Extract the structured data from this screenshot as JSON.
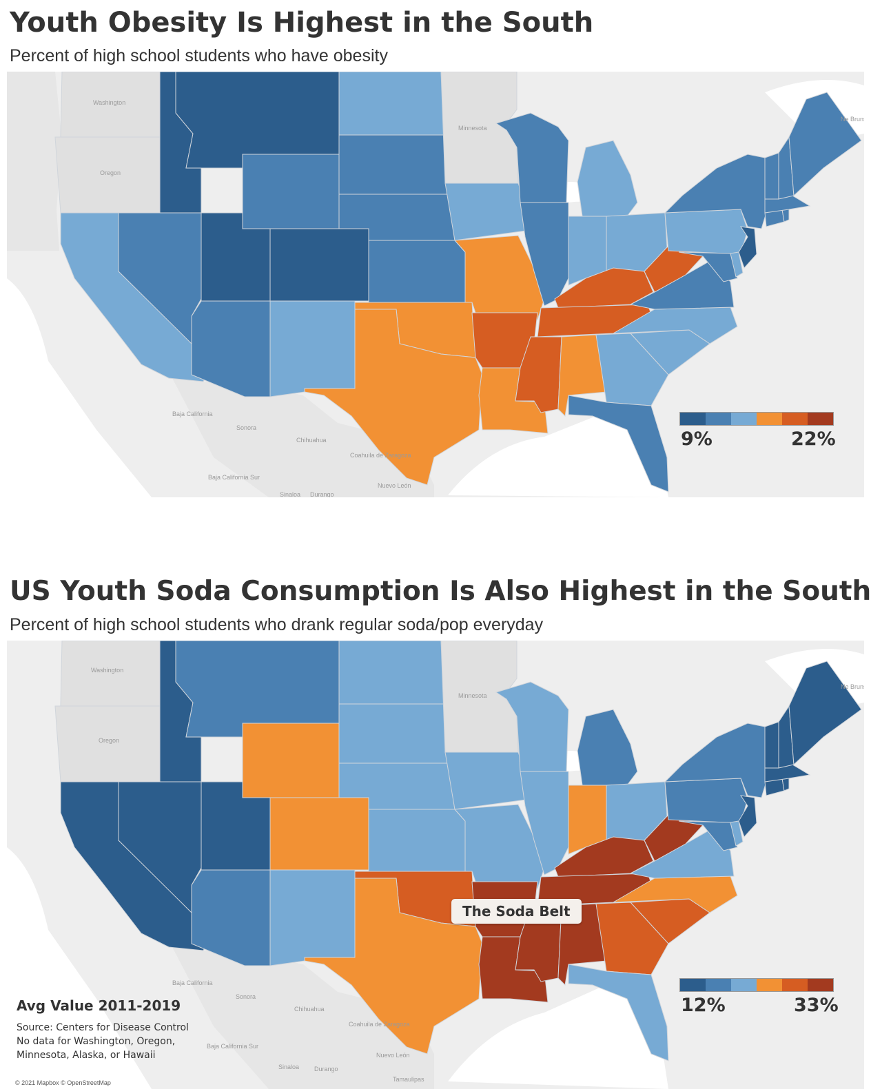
{
  "colors": {
    "c1": "#2c5d8c",
    "c2": "#4a80b2",
    "c3": "#77aad4",
    "c4": "#f29134",
    "c5": "#d65d22",
    "c6": "#a33a1f",
    "land": "#e0e0e0",
    "water": "#ffffff"
  },
  "chart1": {
    "title": "Youth Obesity Is Highest in the South",
    "subtitle": "Percent of high school students who have obesity",
    "legend": {
      "min_label": "9%",
      "max_label": "22%"
    },
    "basemap_labels": [
      "Washington",
      "Oregon",
      "Minnesota",
      "Ne Bruns",
      "Baja California",
      "Sonora",
      "Chihuahua",
      "Coahuila de Zaragoza",
      "Baja California Sur",
      "Nuevo León",
      "Sinaloa",
      "Durango"
    ],
    "chart_data": {
      "type": "choropleth",
      "value_range_pct": [
        9,
        22
      ],
      "color_scale": "diverging-6-step",
      "state_class": {
        "MT": 1,
        "ID": 1,
        "UT": 1,
        "CO": 1,
        "NJ": 1,
        "WY": 2,
        "SD": 2,
        "NE": 2,
        "KS": 2,
        "NV": 2,
        "AZ": 2,
        "WI": 2,
        "IL": 2,
        "FL": 2,
        "VA": 2,
        "NY": 2,
        "MD": 2,
        "ME": 2,
        "VT": 2,
        "NH": 2,
        "MA": 2,
        "CT": 2,
        "RI": 2,
        "ND": 3,
        "IA": 3,
        "CA": 3,
        "NM": 3,
        "MI": 3,
        "IN": 3,
        "OH": 3,
        "PA": 3,
        "NC": 3,
        "SC": 3,
        "GA": 3,
        "DE": 3,
        "MO": 4,
        "OK": 4,
        "TX": 4,
        "LA": 4,
        "AL": 4,
        "AR": 5,
        "MS": 5,
        "TN": 5,
        "KY": 5,
        "WV": 5
      }
    }
  },
  "chart2": {
    "title": "US Youth Soda Consumption Is Also Highest in the South",
    "subtitle": "Percent of high school students who drank regular soda/pop everyday",
    "legend": {
      "min_label": "12%",
      "max_label": "33%"
    },
    "callout": "The Soda Belt",
    "notes": {
      "avg": "Avg Value 2011-2019",
      "source": "Source: Centers for Disease Control",
      "nodata1": "No data for Washington, Oregon,",
      "nodata2": "Minnesota, Alaska, or Hawaii"
    },
    "copyright": "© 2021 Mapbox © OpenStreetMap",
    "basemap_labels": [
      "Washington",
      "Oregon",
      "Minnesota",
      "Ne Bruns",
      "Baja California",
      "Sonora",
      "Chihuahua",
      "Coahuila de Zaragoza",
      "Baja California Sur",
      "Nuevo León",
      "Sinaloa",
      "Durango",
      "Tamaulipas"
    ],
    "chart_data": {
      "type": "choropleth",
      "value_range_pct": [
        12,
        33
      ],
      "color_scale": "diverging-6-step",
      "state_class": {
        "ID": 1,
        "UT": 1,
        "NV": 1,
        "CA": 1,
        "ME": 1,
        "VT": 1,
        "NH": 1,
        "MA": 1,
        "CT": 1,
        "RI": 1,
        "NJ": 1,
        "MT": 2,
        "AZ": 2,
        "MI": 2,
        "NY": 2,
        "PA": 2,
        "MD": 2,
        "ND": 3,
        "SD": 3,
        "NE": 3,
        "KS": 3,
        "IA": 3,
        "MO": 3,
        "IL": 3,
        "WI": 3,
        "NM": 3,
        "OH": 3,
        "VA": 3,
        "FL": 3,
        "DE": 3,
        "WY": 4,
        "CO": 4,
        "IN": 4,
        "TX": 4,
        "NC": 4,
        "OK": 5,
        "GA": 5,
        "SC": 5,
        "AR": 6,
        "LA": 6,
        "MS": 6,
        "AL": 6,
        "TN": 6,
        "KY": 6,
        "WV": 6
      }
    }
  }
}
